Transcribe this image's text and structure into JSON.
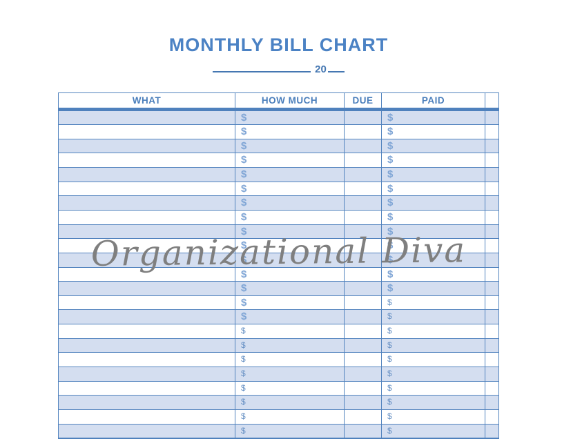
{
  "title": {
    "text": "MONTHLY BILL CHART"
  },
  "subtitle": {
    "year_prefix": "20"
  },
  "watermark": {
    "text": "Organizational Diva"
  },
  "colors": {
    "title": "#4b82c4",
    "accent_dark": "#4577b2",
    "border": "#4f81bd",
    "header_text": "#4a7ebb",
    "row_shade": "#d4def0",
    "dollar_large": "#7fa5d5",
    "dollar_small": "#6690c4",
    "watermark": "#7f7f7f"
  },
  "table": {
    "columns": [
      {
        "label": "WHAT"
      },
      {
        "label": "HOW MUCH"
      },
      {
        "label": "DUE"
      },
      {
        "label": "PAID"
      },
      {
        "label": ""
      }
    ],
    "currency_symbol": "$",
    "rows": [
      {
        "what": "",
        "how_much": "$",
        "due": "",
        "paid": "$",
        "shade": "blue",
        "hm_style": "lg",
        "paid_style": "lg"
      },
      {
        "what": "",
        "how_much": "$",
        "due": "",
        "paid": "$",
        "shade": "white",
        "hm_style": "lg",
        "paid_style": "lg"
      },
      {
        "what": "",
        "how_much": "$",
        "due": "",
        "paid": "$",
        "shade": "blue",
        "hm_style": "lg",
        "paid_style": "lg"
      },
      {
        "what": "",
        "how_much": "$",
        "due": "",
        "paid": "$",
        "shade": "white",
        "hm_style": "lg",
        "paid_style": "lg"
      },
      {
        "what": "",
        "how_much": "$",
        "due": "",
        "paid": "$",
        "shade": "blue",
        "hm_style": "lg",
        "paid_style": "lg"
      },
      {
        "what": "",
        "how_much": "$",
        "due": "",
        "paid": "$",
        "shade": "white",
        "hm_style": "lg",
        "paid_style": "lg"
      },
      {
        "what": "",
        "how_much": "$",
        "due": "",
        "paid": "$",
        "shade": "blue",
        "hm_style": "lg",
        "paid_style": "lg"
      },
      {
        "what": "",
        "how_much": "$",
        "due": "",
        "paid": "$",
        "shade": "white",
        "hm_style": "lg",
        "paid_style": "lg"
      },
      {
        "what": "",
        "how_much": "$",
        "due": "",
        "paid": "$",
        "shade": "blue",
        "hm_style": "lg",
        "paid_style": "lg"
      },
      {
        "what": "",
        "how_much": "$",
        "due": "",
        "paid": "$",
        "shade": "white",
        "hm_style": "lg",
        "paid_style": "lg"
      },
      {
        "what": "",
        "how_much": "$",
        "due": "",
        "paid": "$",
        "shade": "blue",
        "hm_style": "lg",
        "paid_style": "lg"
      },
      {
        "what": "",
        "how_much": "$",
        "due": "",
        "paid": "$",
        "shade": "white",
        "hm_style": "lg",
        "paid_style": "lg"
      },
      {
        "what": "",
        "how_much": "$",
        "due": "",
        "paid": "$",
        "shade": "blue",
        "hm_style": "lg",
        "paid_style": "lg"
      },
      {
        "what": "",
        "how_much": "$",
        "due": "",
        "paid": "$",
        "shade": "white",
        "hm_style": "lg",
        "paid_style": "sm"
      },
      {
        "what": "",
        "how_much": "$",
        "due": "",
        "paid": "$",
        "shade": "blue",
        "hm_style": "lg",
        "paid_style": "sm"
      },
      {
        "what": "",
        "how_much": "$",
        "due": "",
        "paid": "$",
        "shade": "white",
        "hm_style": "sm",
        "paid_style": "sm"
      },
      {
        "what": "",
        "how_much": "$",
        "due": "",
        "paid": "$",
        "shade": "blue",
        "hm_style": "sm",
        "paid_style": "sm"
      },
      {
        "what": "",
        "how_much": "$",
        "due": "",
        "paid": "$",
        "shade": "white",
        "hm_style": "sm",
        "paid_style": "sm"
      },
      {
        "what": "",
        "how_much": "$",
        "due": "",
        "paid": "$",
        "shade": "blue",
        "hm_style": "sm",
        "paid_style": "sm"
      },
      {
        "what": "",
        "how_much": "$",
        "due": "",
        "paid": "$",
        "shade": "white",
        "hm_style": "sm",
        "paid_style": "sm"
      },
      {
        "what": "",
        "how_much": "$",
        "due": "",
        "paid": "$",
        "shade": "blue",
        "hm_style": "sm",
        "paid_style": "sm"
      },
      {
        "what": "",
        "how_much": "$",
        "due": "",
        "paid": "$",
        "shade": "white",
        "hm_style": "sm",
        "paid_style": "sm"
      },
      {
        "what": "",
        "how_much": "$",
        "due": "",
        "paid": "$",
        "shade": "blue",
        "hm_style": "sm",
        "paid_style": "sm"
      }
    ]
  }
}
